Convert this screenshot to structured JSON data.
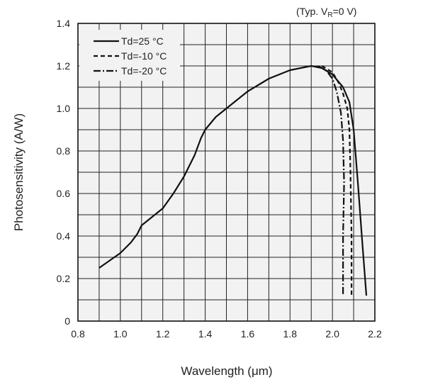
{
  "chart_data": {
    "type": "line",
    "condition": {
      "prefix": "(Typ. V",
      "subscript": "R",
      "suffix": "=0 V)"
    },
    "xlabel": "Wavelength (μm)",
    "ylabel": "Photosensitivity (A/W)",
    "xlim": [
      0.8,
      2.2
    ],
    "ylim": [
      0,
      1.4
    ],
    "xticks": [
      0.8,
      0.9,
      1.0,
      1.1,
      1.2,
      1.3,
      1.4,
      1.5,
      1.6,
      1.7,
      1.8,
      1.9,
      2.0,
      2.1,
      2.2
    ],
    "xtick_labels": [
      "0.8",
      "",
      "1.0",
      "",
      "1.2",
      "",
      "1.4",
      "",
      "1.6",
      "",
      "1.8",
      "",
      "2.0",
      "",
      "2.2"
    ],
    "yticks": [
      0,
      0.1,
      0.2,
      0.3,
      0.4,
      0.5,
      0.6,
      0.7,
      0.8,
      0.9,
      1.0,
      1.1,
      1.2,
      1.3,
      1.4
    ],
    "ytick_labels": [
      "0",
      "",
      "0.2",
      "",
      "0.4",
      "",
      "0.6",
      "",
      "0.8",
      "",
      "1.0",
      "",
      "1.2",
      "",
      "1.4"
    ],
    "grid": true,
    "background": "#f2f2f2",
    "legend_position": "top-left",
    "series": [
      {
        "name": "Td=25 °C",
        "style": "solid",
        "x": [
          0.9,
          1.0,
          1.05,
          1.08,
          1.1,
          1.15,
          1.2,
          1.25,
          1.3,
          1.35,
          1.38,
          1.4,
          1.45,
          1.5,
          1.55,
          1.6,
          1.65,
          1.7,
          1.75,
          1.8,
          1.85,
          1.9,
          1.95,
          2.0,
          2.05,
          2.08,
          2.1,
          2.12,
          2.14,
          2.16
        ],
        "y": [
          0.25,
          0.32,
          0.37,
          0.41,
          0.45,
          0.49,
          0.53,
          0.6,
          0.68,
          0.78,
          0.86,
          0.9,
          0.96,
          1.0,
          1.04,
          1.08,
          1.11,
          1.14,
          1.16,
          1.18,
          1.19,
          1.2,
          1.19,
          1.16,
          1.1,
          1.03,
          0.9,
          0.65,
          0.38,
          0.12
        ]
      },
      {
        "name": "Td=-10 °C",
        "style": "dashed",
        "x": [
          1.95,
          2.0,
          2.03,
          2.05,
          2.07,
          2.08,
          2.085,
          2.09,
          2.09
        ],
        "y": [
          1.2,
          1.17,
          1.12,
          1.07,
          1.0,
          0.9,
          0.7,
          0.4,
          0.12
        ]
      },
      {
        "name": "Td=-20 °C",
        "style": "dashdot",
        "x": [
          1.93,
          1.97,
          2.0,
          2.02,
          2.04,
          2.05,
          2.055,
          2.05,
          2.05
        ],
        "y": [
          1.2,
          1.18,
          1.14,
          1.08,
          0.98,
          0.85,
          0.65,
          0.4,
          0.12
        ]
      }
    ]
  }
}
